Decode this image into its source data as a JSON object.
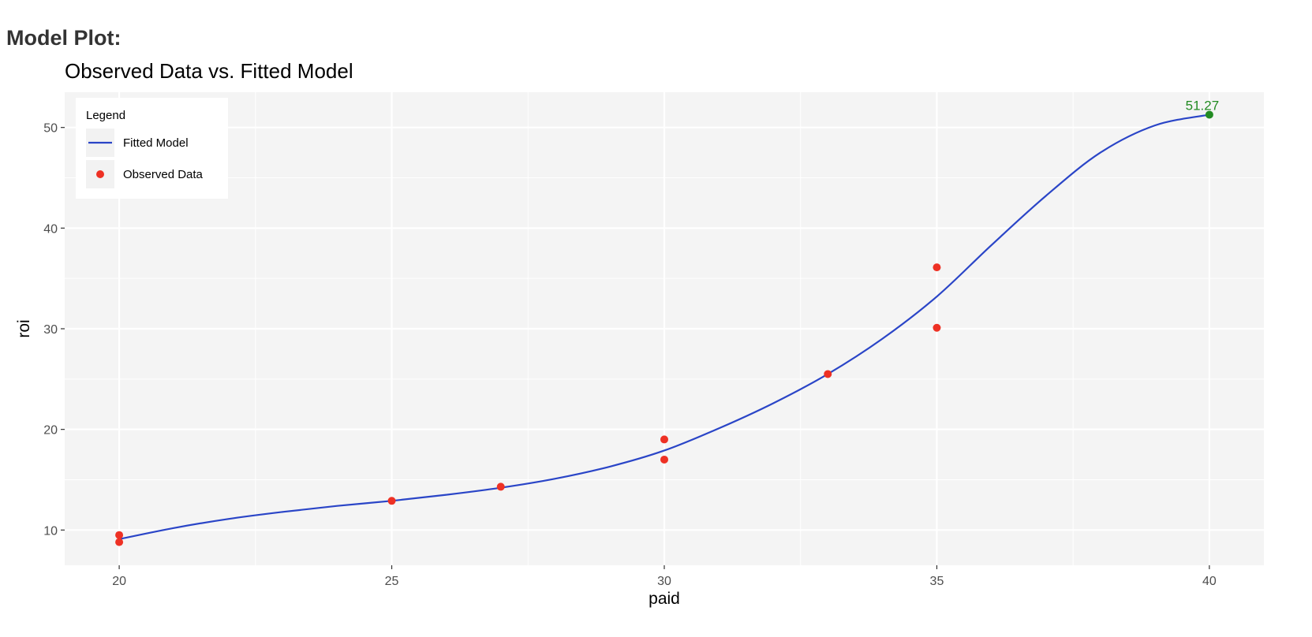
{
  "page_title": "Model Plot:",
  "chart_data": {
    "type": "line",
    "title": "Observed Data vs. Fitted Model",
    "xlabel": "paid",
    "ylabel": "roi",
    "xlim": [
      19,
      41
    ],
    "ylim": [
      6.5,
      53.5
    ],
    "x_ticks": [
      20,
      25,
      30,
      35,
      40
    ],
    "y_ticks": [
      10,
      20,
      30,
      40,
      50
    ],
    "grid": true,
    "legend": {
      "title": "Legend",
      "placement": "top-left",
      "entries": [
        {
          "label": "Fitted Model",
          "kind": "line",
          "color": "#2a45c7"
        },
        {
          "label": "Observed Data",
          "kind": "point",
          "color": "#ee3124"
        }
      ]
    },
    "series": [
      {
        "name": "Fitted Model",
        "kind": "line",
        "color": "#2a45c7",
        "x": [
          20,
          21,
          22,
          23,
          24,
          25,
          26,
          27,
          28,
          29,
          30,
          31,
          32,
          33,
          34,
          35,
          36,
          37,
          38,
          39,
          40
        ],
        "y": [
          9.1,
          10.2,
          11.1,
          11.8,
          12.4,
          12.9,
          13.5,
          14.2,
          15.1,
          16.3,
          17.9,
          20.1,
          22.6,
          25.5,
          29.0,
          33.2,
          38.3,
          43.2,
          47.5,
          50.2,
          51.27
        ]
      },
      {
        "name": "Observed Data",
        "kind": "point",
        "color": "#ee3124",
        "x": [
          20,
          20,
          25,
          27,
          30,
          30,
          33,
          35,
          35
        ],
        "y": [
          9.5,
          8.8,
          12.9,
          14.3,
          19.0,
          17.0,
          25.5,
          36.1,
          30.1
        ]
      }
    ],
    "annotations": [
      {
        "x": 40,
        "y": 51.27,
        "label": "51.27",
        "color": "#228b22"
      }
    ]
  }
}
